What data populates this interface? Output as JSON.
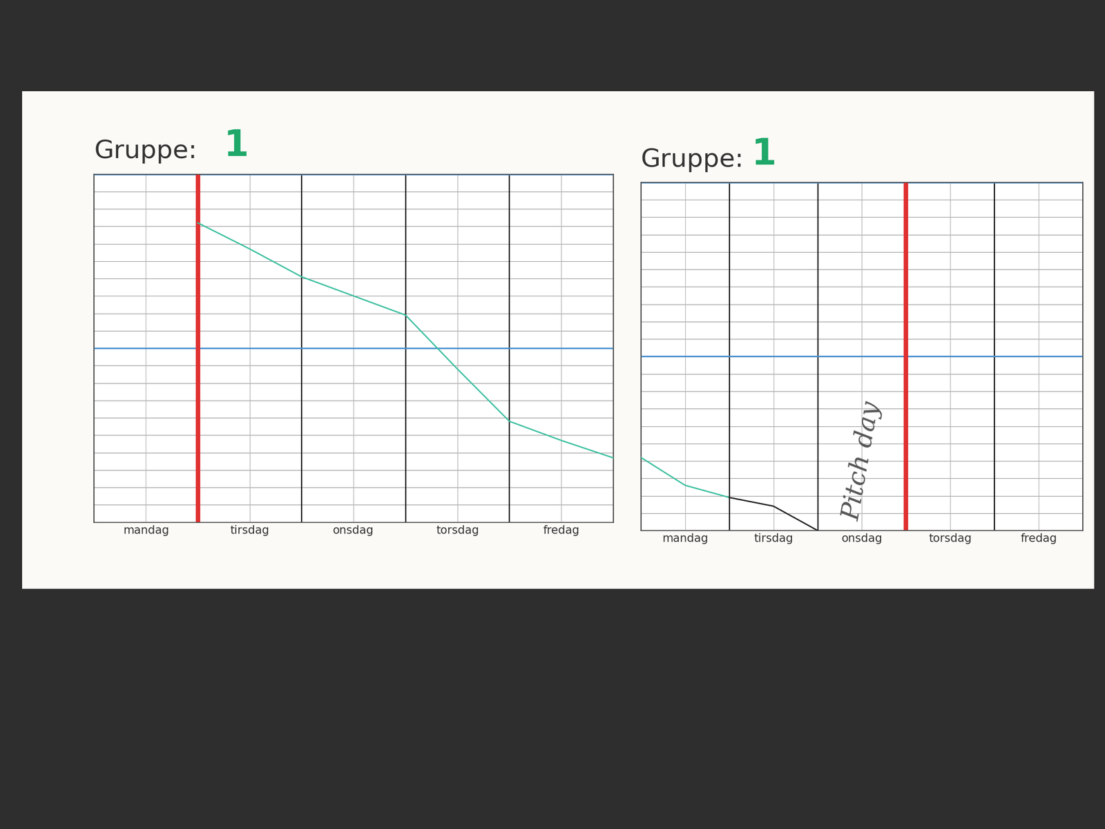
{
  "chart_data": [
    {
      "type": "line",
      "title": "Gruppe:",
      "group": "1",
      "x": [
        0,
        0.5,
        1,
        1.5,
        2,
        2.5,
        3,
        3.5,
        4,
        4.5,
        5
      ],
      "xlim": [
        0,
        5
      ],
      "xticks": [
        {
          "value": 0.5,
          "label": "mandag"
        },
        {
          "value": 1.5,
          "label": "tirsdag"
        },
        {
          "value": 2.5,
          "label": "onsdag"
        },
        {
          "value": 3.5,
          "label": "torsdag"
        },
        {
          "value": 4.5,
          "label": "fredag"
        }
      ],
      "ylim": [
        0,
        20
      ],
      "yticks": [
        0,
        1,
        2,
        3,
        4,
        5,
        6,
        7,
        8,
        9,
        10,
        11,
        12,
        13,
        14,
        15,
        16,
        17,
        18,
        19,
        20
      ],
      "grid": true,
      "tick_labels": "x",
      "vlines": [
        {
          "x": 1,
          "color": "#e03030"
        }
      ],
      "hlines": [
        {
          "y": 10,
          "color": "#4a90d0"
        },
        {
          "y": 20,
          "color": "#4a90d0"
        }
      ],
      "series": [
        {
          "color": "#3cc0a0",
          "values": [
            null,
            null,
            17.2,
            15.7,
            14.1,
            13.0,
            11.9,
            8.8,
            5.8,
            4.7,
            3.7
          ]
        }
      ]
    },
    {
      "type": "line",
      "title": "Gruppe:",
      "group": "1",
      "x": [
        0,
        0.5,
        1,
        1.5,
        2,
        2.5,
        3,
        3.5,
        4,
        4.5,
        5
      ],
      "xlim": [
        0,
        5
      ],
      "xticks": [
        {
          "value": 0.5,
          "label": "mandag"
        },
        {
          "value": 1.5,
          "label": "tirsdag"
        },
        {
          "value": 2.5,
          "label": "onsdag"
        },
        {
          "value": 3.5,
          "label": "torsdag"
        },
        {
          "value": 4.5,
          "label": "fredag"
        }
      ],
      "ylim": [
        0,
        20
      ],
      "yticks": [
        0,
        1,
        2,
        3,
        4,
        5,
        6,
        7,
        8,
        9,
        10,
        11,
        12,
        13,
        14,
        15,
        16,
        17,
        18,
        19,
        20
      ],
      "grid": true,
      "tick_labels": "x",
      "vlines": [
        {
          "x": 3,
          "color": "#e03030"
        }
      ],
      "hlines": [
        {
          "y": 10,
          "color": "#4a90d0"
        },
        {
          "y": 20,
          "color": "#4a90d0"
        }
      ],
      "annotations": [
        {
          "text": "Pitch day",
          "x": 2.5,
          "y": 4
        }
      ],
      "series": [
        {
          "color": "#3cc0a0",
          "values": [
            4.2,
            2.6,
            1.9,
            null,
            null,
            null,
            null,
            null,
            null,
            null,
            null
          ]
        },
        {
          "color": "#222222",
          "values": [
            null,
            null,
            1.9,
            1.4,
            0,
            null,
            null,
            null,
            null,
            null,
            null
          ]
        }
      ]
    }
  ]
}
